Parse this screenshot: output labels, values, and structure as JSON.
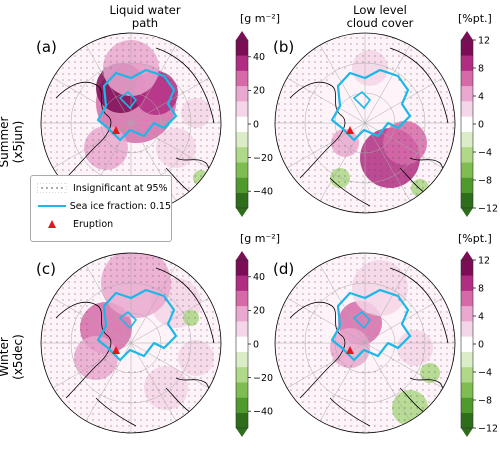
{
  "column_titles": {
    "lwp_line1": "Liquid water",
    "lwp_line2": "path",
    "llc_line1": "Low level",
    "llc_line2": "cloud cover"
  },
  "row_titles": {
    "summer_line1": "Summer",
    "summer_line2": "(x5jun)",
    "winter_line1": "Winter",
    "winter_line2": "(x5dec)"
  },
  "panel_labels": [
    "(a)",
    "(b)",
    "(c)",
    "(d)"
  ],
  "legend": {
    "insignificant": "Insignificant at 95%",
    "sea_ice": "Sea ice fraction: 0.15",
    "eruption": "Eruption"
  },
  "colors": {
    "sea_ice_contour": "#1ab8e8",
    "eruption_marker": "#e0181c",
    "coastline": "#000000",
    "colormap": [
      "#2e6e1a",
      "#4e9a2c",
      "#7fbd52",
      "#b0d889",
      "#dbedc6",
      "#ffffff",
      "#f5d5e8",
      "#eaa7cf",
      "#d66aa8",
      "#b12d83",
      "#7b0c55"
    ]
  },
  "chart_data": [
    {
      "panel": "(a)",
      "type": "heatmap",
      "projection": "north-polar-stereographic",
      "season": "Summer (x5jun)",
      "variable": "Liquid water path",
      "colorbar": {
        "unit": "[g m⁻²]",
        "ticks": [
          -40,
          -20,
          0,
          20,
          40
        ],
        "range": [
          -50,
          50
        ]
      }
    },
    {
      "panel": "(b)",
      "type": "heatmap",
      "projection": "north-polar-stereographic",
      "season": "Summer (x5jun)",
      "variable": "Low level cloud cover",
      "colorbar": {
        "unit": "[%pt.]",
        "ticks": [
          -12,
          -8,
          -4,
          0,
          4,
          8,
          12
        ],
        "range": [
          -12,
          12
        ]
      }
    },
    {
      "panel": "(c)",
      "type": "heatmap",
      "projection": "north-polar-stereographic",
      "season": "Winter (x5dec)",
      "variable": "Liquid water path",
      "colorbar": {
        "unit": "[g m⁻²]",
        "ticks": [
          -40,
          -20,
          0,
          20,
          40
        ],
        "range": [
          -50,
          50
        ]
      }
    },
    {
      "panel": "(d)",
      "type": "heatmap",
      "projection": "north-polar-stereographic",
      "season": "Winter (x5dec)",
      "variable": "Low level cloud cover",
      "colorbar": {
        "unit": "[%pt.]",
        "ticks": [
          -12,
          -8,
          -4,
          0,
          4,
          8,
          12
        ],
        "range": [
          -12,
          12
        ]
      }
    }
  ]
}
